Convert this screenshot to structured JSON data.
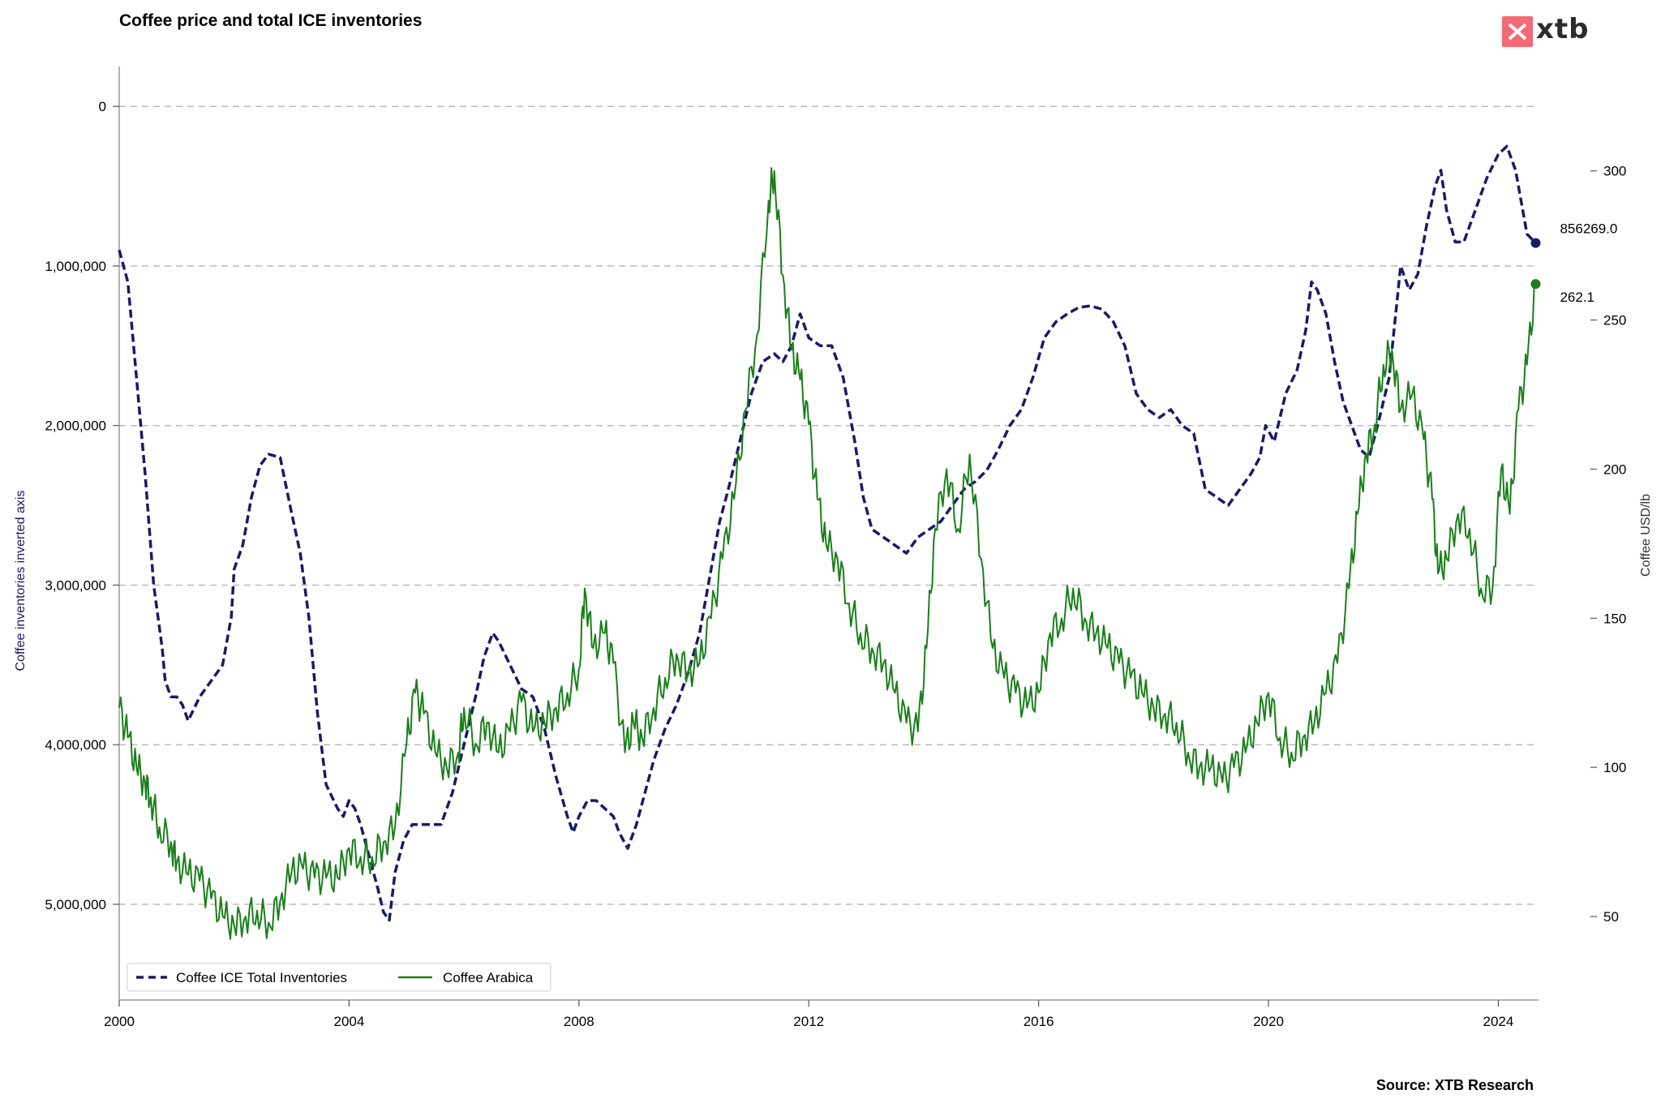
{
  "title": "Coffee price and total ICE inventories",
  "brand": {
    "name": "xtb",
    "color": "#f26a73"
  },
  "source": "Source: XTB Research",
  "chart_data": {
    "type": "line",
    "title": "Coffee price and total ICE inventories",
    "x_ticks": [
      "2000",
      "2004",
      "2008",
      "2012",
      "2016",
      "2020",
      "2024"
    ],
    "xlim": [
      2000.0,
      2024.7
    ],
    "left_axis": {
      "label": "Coffee inventories inverted axis",
      "inverted": true,
      "ylim": [
        5600000,
        -250000
      ],
      "ticks": [
        0,
        1000000,
        2000000,
        3000000,
        4000000,
        5000000
      ],
      "tick_labels": [
        "0",
        "1,000,000",
        "2,000,000",
        "3,000,000",
        "4,000,000",
        "5,000,000"
      ],
      "grid": true
    },
    "right_axis": {
      "label": "Coffee USD/lb",
      "ylim": [
        22,
        335
      ],
      "ticks": [
        50,
        100,
        150,
        200,
        250,
        300
      ],
      "tick_labels": [
        "50",
        "100",
        "150",
        "200",
        "250",
        "300"
      ]
    },
    "series": [
      {
        "name": "Coffee ICE Total Inventories",
        "axis": "left",
        "style": "dashed",
        "color": "#1a1a66",
        "end_label": "856269.0",
        "points": [
          [
            2000.0,
            900000
          ],
          [
            2000.15,
            1100000
          ],
          [
            2000.3,
            1700000
          ],
          [
            2000.45,
            2300000
          ],
          [
            2000.6,
            3000000
          ],
          [
            2000.75,
            3400000
          ],
          [
            2000.8,
            3600000
          ],
          [
            2000.9,
            3700000
          ],
          [
            2001.0,
            3700000
          ],
          [
            2001.1,
            3750000
          ],
          [
            2001.2,
            3850000
          ],
          [
            2001.4,
            3700000
          ],
          [
            2001.6,
            3600000
          ],
          [
            2001.8,
            3500000
          ],
          [
            2001.95,
            3200000
          ],
          [
            2002.0,
            2900000
          ],
          [
            2002.15,
            2750000
          ],
          [
            2002.3,
            2450000
          ],
          [
            2002.45,
            2250000
          ],
          [
            2002.6,
            2180000
          ],
          [
            2002.8,
            2200000
          ],
          [
            2003.0,
            2550000
          ],
          [
            2003.15,
            2800000
          ],
          [
            2003.3,
            3200000
          ],
          [
            2003.45,
            3800000
          ],
          [
            2003.6,
            4250000
          ],
          [
            2003.8,
            4400000
          ],
          [
            2003.9,
            4450000
          ],
          [
            2004.0,
            4350000
          ],
          [
            2004.1,
            4400000
          ],
          [
            2004.2,
            4500000
          ],
          [
            2004.35,
            4700000
          ],
          [
            2004.5,
            4900000
          ],
          [
            2004.6,
            5050000
          ],
          [
            2004.7,
            5100000
          ],
          [
            2004.8,
            4800000
          ],
          [
            2004.95,
            4600000
          ],
          [
            2005.1,
            4500000
          ],
          [
            2005.3,
            4500000
          ],
          [
            2005.6,
            4500000
          ],
          [
            2005.8,
            4300000
          ],
          [
            2006.0,
            4000000
          ],
          [
            2006.2,
            3700000
          ],
          [
            2006.35,
            3450000
          ],
          [
            2006.5,
            3300000
          ],
          [
            2006.6,
            3350000
          ],
          [
            2006.8,
            3500000
          ],
          [
            2007.0,
            3650000
          ],
          [
            2007.2,
            3700000
          ],
          [
            2007.4,
            3900000
          ],
          [
            2007.6,
            4200000
          ],
          [
            2007.8,
            4450000
          ],
          [
            2007.9,
            4550000
          ],
          [
            2008.0,
            4450000
          ],
          [
            2008.15,
            4350000
          ],
          [
            2008.3,
            4350000
          ],
          [
            2008.45,
            4400000
          ],
          [
            2008.6,
            4450000
          ],
          [
            2008.7,
            4550000
          ],
          [
            2008.85,
            4650000
          ],
          [
            2009.0,
            4500000
          ],
          [
            2009.15,
            4300000
          ],
          [
            2009.3,
            4100000
          ],
          [
            2009.5,
            3900000
          ],
          [
            2009.7,
            3750000
          ],
          [
            2009.9,
            3550000
          ],
          [
            2010.1,
            3300000
          ],
          [
            2010.3,
            2900000
          ],
          [
            2010.45,
            2600000
          ],
          [
            2010.6,
            2400000
          ],
          [
            2010.8,
            2100000
          ],
          [
            2011.0,
            1800000
          ],
          [
            2011.2,
            1600000
          ],
          [
            2011.4,
            1550000
          ],
          [
            2011.55,
            1600000
          ],
          [
            2011.7,
            1500000
          ],
          [
            2011.85,
            1300000
          ],
          [
            2012.0,
            1450000
          ],
          [
            2012.2,
            1500000
          ],
          [
            2012.4,
            1500000
          ],
          [
            2012.6,
            1700000
          ],
          [
            2012.8,
            2100000
          ],
          [
            2012.95,
            2450000
          ],
          [
            2013.1,
            2650000
          ],
          [
            2013.3,
            2700000
          ],
          [
            2013.5,
            2750000
          ],
          [
            2013.7,
            2800000
          ],
          [
            2013.9,
            2700000
          ],
          [
            2014.1,
            2650000
          ],
          [
            2014.3,
            2600000
          ],
          [
            2014.5,
            2500000
          ],
          [
            2014.7,
            2400000
          ],
          [
            2014.9,
            2350000
          ],
          [
            2015.1,
            2280000
          ],
          [
            2015.3,
            2150000
          ],
          [
            2015.5,
            2000000
          ],
          [
            2015.7,
            1900000
          ],
          [
            2015.9,
            1700000
          ],
          [
            2016.1,
            1450000
          ],
          [
            2016.3,
            1350000
          ],
          [
            2016.5,
            1300000
          ],
          [
            2016.7,
            1260000
          ],
          [
            2016.9,
            1250000
          ],
          [
            2017.1,
            1270000
          ],
          [
            2017.3,
            1350000
          ],
          [
            2017.5,
            1500000
          ],
          [
            2017.7,
            1800000
          ],
          [
            2017.9,
            1900000
          ],
          [
            2018.1,
            1950000
          ],
          [
            2018.3,
            1900000
          ],
          [
            2018.5,
            2000000
          ],
          [
            2018.7,
            2050000
          ],
          [
            2018.9,
            2400000
          ],
          [
            2019.1,
            2450000
          ],
          [
            2019.3,
            2500000
          ],
          [
            2019.5,
            2400000
          ],
          [
            2019.7,
            2300000
          ],
          [
            2019.85,
            2200000
          ],
          [
            2019.95,
            2000000
          ],
          [
            2020.1,
            2100000
          ],
          [
            2020.3,
            1800000
          ],
          [
            2020.5,
            1650000
          ],
          [
            2020.65,
            1400000
          ],
          [
            2020.75,
            1100000
          ],
          [
            2020.85,
            1150000
          ],
          [
            2021.0,
            1300000
          ],
          [
            2021.15,
            1600000
          ],
          [
            2021.3,
            1850000
          ],
          [
            2021.45,
            2000000
          ],
          [
            2021.6,
            2150000
          ],
          [
            2021.75,
            2200000
          ],
          [
            2021.9,
            2000000
          ],
          [
            2022.1,
            1700000
          ],
          [
            2022.3,
            1000000
          ],
          [
            2022.45,
            1150000
          ],
          [
            2022.6,
            1050000
          ],
          [
            2022.75,
            750000
          ],
          [
            2022.9,
            500000
          ],
          [
            2023.0,
            400000
          ],
          [
            2023.1,
            650000
          ],
          [
            2023.25,
            850000
          ],
          [
            2023.4,
            850000
          ],
          [
            2023.6,
            650000
          ],
          [
            2023.8,
            450000
          ],
          [
            2024.0,
            300000
          ],
          [
            2024.15,
            250000
          ],
          [
            2024.3,
            400000
          ],
          [
            2024.5,
            800000
          ],
          [
            2024.65,
            856269
          ]
        ]
      },
      {
        "name": "Coffee Arabica",
        "axis": "right",
        "style": "solid",
        "color": "#1a7f1a",
        "end_label": "262.1",
        "points": [
          [
            2000.0,
            120
          ],
          [
            2000.15,
            110
          ],
          [
            2000.3,
            100
          ],
          [
            2000.45,
            95
          ],
          [
            2000.55,
            90
          ],
          [
            2000.7,
            80
          ],
          [
            2000.9,
            75
          ],
          [
            2001.0,
            68
          ],
          [
            2001.2,
            64
          ],
          [
            2001.4,
            62
          ],
          [
            2001.6,
            56
          ],
          [
            2001.8,
            50
          ],
          [
            2002.0,
            47
          ],
          [
            2002.2,
            50
          ],
          [
            2002.4,
            52
          ],
          [
            2002.6,
            48
          ],
          [
            2002.8,
            55
          ],
          [
            2003.0,
            65
          ],
          [
            2003.2,
            66
          ],
          [
            2003.4,
            63
          ],
          [
            2003.6,
            63
          ],
          [
            2003.8,
            63
          ],
          [
            2004.0,
            73
          ],
          [
            2004.2,
            70
          ],
          [
            2004.4,
            70
          ],
          [
            2004.6,
            75
          ],
          [
            2004.8,
            80
          ],
          [
            2005.0,
            108
          ],
          [
            2005.15,
            125
          ],
          [
            2005.3,
            118
          ],
          [
            2005.5,
            105
          ],
          [
            2005.7,
            100
          ],
          [
            2005.9,
            105
          ],
          [
            2006.0,
            120
          ],
          [
            2006.2,
            108
          ],
          [
            2006.4,
            115
          ],
          [
            2006.6,
            105
          ],
          [
            2006.8,
            112
          ],
          [
            2007.0,
            122
          ],
          [
            2007.2,
            112
          ],
          [
            2007.4,
            115
          ],
          [
            2007.6,
            120
          ],
          [
            2007.8,
            125
          ],
          [
            2008.0,
            133
          ],
          [
            2008.1,
            160
          ],
          [
            2008.25,
            140
          ],
          [
            2008.45,
            145
          ],
          [
            2008.6,
            135
          ],
          [
            2008.8,
            105
          ],
          [
            2008.95,
            115
          ],
          [
            2009.1,
            110
          ],
          [
            2009.3,
            120
          ],
          [
            2009.5,
            130
          ],
          [
            2009.7,
            138
          ],
          [
            2009.9,
            132
          ],
          [
            2010.1,
            135
          ],
          [
            2010.3,
            150
          ],
          [
            2010.5,
            170
          ],
          [
            2010.7,
            190
          ],
          [
            2010.9,
            220
          ],
          [
            2011.1,
            245
          ],
          [
            2011.3,
            290
          ],
          [
            2011.4,
            300
          ],
          [
            2011.55,
            265
          ],
          [
            2011.7,
            240
          ],
          [
            2011.85,
            230
          ],
          [
            2012.0,
            215
          ],
          [
            2012.15,
            190
          ],
          [
            2012.3,
            175
          ],
          [
            2012.5,
            170
          ],
          [
            2012.7,
            155
          ],
          [
            2012.9,
            145
          ],
          [
            2013.1,
            140
          ],
          [
            2013.3,
            135
          ],
          [
            2013.5,
            125
          ],
          [
            2013.7,
            115
          ],
          [
            2013.9,
            112
          ],
          [
            2014.05,
            140
          ],
          [
            2014.2,
            180
          ],
          [
            2014.4,
            200
          ],
          [
            2014.6,
            180
          ],
          [
            2014.8,
            205
          ],
          [
            2015.0,
            170
          ],
          [
            2015.2,
            140
          ],
          [
            2015.4,
            130
          ],
          [
            2015.6,
            125
          ],
          [
            2015.8,
            120
          ],
          [
            2016.0,
            125
          ],
          [
            2016.2,
            145
          ],
          [
            2016.4,
            150
          ],
          [
            2016.6,
            160
          ],
          [
            2016.8,
            150
          ],
          [
            2017.0,
            145
          ],
          [
            2017.2,
            140
          ],
          [
            2017.4,
            135
          ],
          [
            2017.6,
            130
          ],
          [
            2017.8,
            125
          ],
          [
            2018.0,
            120
          ],
          [
            2018.2,
            118
          ],
          [
            2018.4,
            115
          ],
          [
            2018.6,
            105
          ],
          [
            2018.8,
            100
          ],
          [
            2019.0,
            100
          ],
          [
            2019.2,
            95
          ],
          [
            2019.4,
            100
          ],
          [
            2019.6,
            105
          ],
          [
            2019.8,
            115
          ],
          [
            2020.0,
            125
          ],
          [
            2020.2,
            110
          ],
          [
            2020.4,
            105
          ],
          [
            2020.6,
            110
          ],
          [
            2020.8,
            115
          ],
          [
            2021.0,
            125
          ],
          [
            2021.2,
            135
          ],
          [
            2021.4,
            160
          ],
          [
            2021.55,
            185
          ],
          [
            2021.7,
            205
          ],
          [
            2021.85,
            215
          ],
          [
            2022.0,
            235
          ],
          [
            2022.15,
            240
          ],
          [
            2022.3,
            220
          ],
          [
            2022.5,
            225
          ],
          [
            2022.7,
            210
          ],
          [
            2022.85,
            190
          ],
          [
            2022.95,
            165
          ],
          [
            2023.1,
            170
          ],
          [
            2023.3,
            185
          ],
          [
            2023.5,
            180
          ],
          [
            2023.7,
            160
          ],
          [
            2023.9,
            160
          ],
          [
            2024.05,
            200
          ],
          [
            2024.2,
            185
          ],
          [
            2024.35,
            220
          ],
          [
            2024.5,
            235
          ],
          [
            2024.65,
            262.1
          ]
        ]
      }
    ],
    "end_labels": [
      "856269.0",
      "262.1"
    ],
    "legend": {
      "position": "bottom-left",
      "entries": [
        "Coffee ICE Total Inventories",
        "Coffee Arabica"
      ]
    }
  }
}
